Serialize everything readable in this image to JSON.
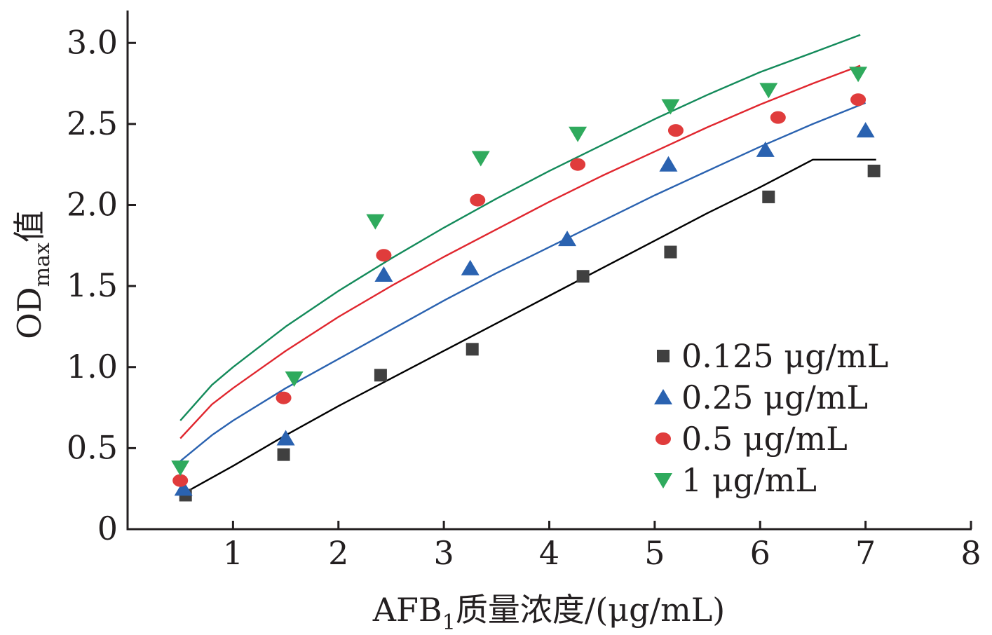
{
  "chart_data": {
    "type": "scatter",
    "title": "",
    "xlabel": {
      "main": "AFB",
      "sub": "1",
      "rest": "质量浓度/(μg/mL)"
    },
    "ylabel": {
      "main": "OD",
      "sub": "max",
      "rest": "值"
    },
    "xlim": [
      0,
      8
    ],
    "ylim": [
      0,
      3.2
    ],
    "x_ticks": [
      1,
      2,
      3,
      4,
      5,
      6,
      7,
      8
    ],
    "y_ticks": [
      0,
      0.5,
      1.0,
      1.5,
      2.0,
      2.5,
      3.0
    ],
    "y_tick_labels": [
      "0",
      "0.5",
      "1.0",
      "1.5",
      "2.0",
      "2.5",
      "3.0"
    ],
    "grid": false,
    "legend_position": "bottom-right",
    "series": [
      {
        "name": "0.125 μg/mL",
        "marker": "square",
        "color": "#404040",
        "line_color": "#000000",
        "points": [
          [
            0.55,
            0.21
          ],
          [
            1.48,
            0.46
          ],
          [
            2.4,
            0.95
          ],
          [
            3.27,
            1.11
          ],
          [
            4.32,
            1.56
          ],
          [
            5.15,
            1.71
          ],
          [
            6.08,
            2.05
          ],
          [
            7.08,
            2.21
          ]
        ],
        "fit": [
          [
            0.53,
            0.22
          ],
          [
            1.0,
            0.39
          ],
          [
            1.5,
            0.58
          ],
          [
            2.0,
            0.76
          ],
          [
            2.5,
            0.93
          ],
          [
            3.0,
            1.1
          ],
          [
            3.5,
            1.27
          ],
          [
            4.0,
            1.44
          ],
          [
            4.5,
            1.61
          ],
          [
            5.0,
            1.78
          ],
          [
            5.5,
            1.95
          ],
          [
            6.0,
            2.11
          ],
          [
            6.5,
            2.28
          ],
          [
            7.1,
            2.28
          ]
        ]
      },
      {
        "name": "0.25 μg/mL",
        "marker": "triangle-up",
        "color": "#2a62b0",
        "line_color": "#2a62b0",
        "points": [
          [
            0.53,
            0.25
          ],
          [
            1.5,
            0.56
          ],
          [
            2.43,
            1.57
          ],
          [
            3.25,
            1.61
          ],
          [
            4.17,
            1.79
          ],
          [
            5.13,
            2.25
          ],
          [
            6.05,
            2.34
          ],
          [
            7.0,
            2.46
          ]
        ],
        "fit": [
          [
            0.5,
            0.42
          ],
          [
            0.8,
            0.58
          ],
          [
            1.0,
            0.67
          ],
          [
            1.5,
            0.87
          ],
          [
            2.0,
            1.05
          ],
          [
            2.5,
            1.23
          ],
          [
            3.0,
            1.41
          ],
          [
            3.5,
            1.58
          ],
          [
            4.0,
            1.74
          ],
          [
            4.5,
            1.9
          ],
          [
            5.0,
            2.06
          ],
          [
            5.5,
            2.21
          ],
          [
            6.0,
            2.36
          ],
          [
            6.5,
            2.5
          ],
          [
            7.0,
            2.63
          ]
        ]
      },
      {
        "name": "0.5 μg/mL",
        "marker": "circle",
        "color": "#e03c3c",
        "line_color": "#e0262e",
        "points": [
          [
            0.5,
            0.3
          ],
          [
            1.48,
            0.81
          ],
          [
            2.43,
            1.69
          ],
          [
            3.32,
            2.03
          ],
          [
            4.27,
            2.25
          ],
          [
            5.2,
            2.46
          ],
          [
            6.17,
            2.54
          ],
          [
            6.93,
            2.65
          ]
        ],
        "fit": [
          [
            0.5,
            0.56
          ],
          [
            0.8,
            0.77
          ],
          [
            1.0,
            0.87
          ],
          [
            1.5,
            1.1
          ],
          [
            2.0,
            1.31
          ],
          [
            2.5,
            1.5
          ],
          [
            3.0,
            1.68
          ],
          [
            3.5,
            1.85
          ],
          [
            4.0,
            2.02
          ],
          [
            4.5,
            2.18
          ],
          [
            5.0,
            2.33
          ],
          [
            5.5,
            2.48
          ],
          [
            6.0,
            2.62
          ],
          [
            6.5,
            2.75
          ],
          [
            6.95,
            2.86
          ]
        ]
      },
      {
        "name": "1 μg/mL",
        "marker": "triangle-down",
        "color": "#2faa5d",
        "line_color": "#138a5a",
        "points": [
          [
            0.5,
            0.38
          ],
          [
            1.58,
            0.93
          ],
          [
            2.35,
            1.9
          ],
          [
            3.35,
            2.29
          ],
          [
            4.27,
            2.44
          ],
          [
            5.15,
            2.61
          ],
          [
            6.08,
            2.71
          ],
          [
            6.93,
            2.81
          ]
        ],
        "fit": [
          [
            0.5,
            0.67
          ],
          [
            0.8,
            0.89
          ],
          [
            1.0,
            1.0
          ],
          [
            1.5,
            1.25
          ],
          [
            2.0,
            1.47
          ],
          [
            2.5,
            1.67
          ],
          [
            3.0,
            1.86
          ],
          [
            3.5,
            2.04
          ],
          [
            4.0,
            2.21
          ],
          [
            4.5,
            2.37
          ],
          [
            5.0,
            2.53
          ],
          [
            5.5,
            2.68
          ],
          [
            6.0,
            2.82
          ],
          [
            6.5,
            2.94
          ],
          [
            6.95,
            3.05
          ]
        ]
      }
    ]
  }
}
